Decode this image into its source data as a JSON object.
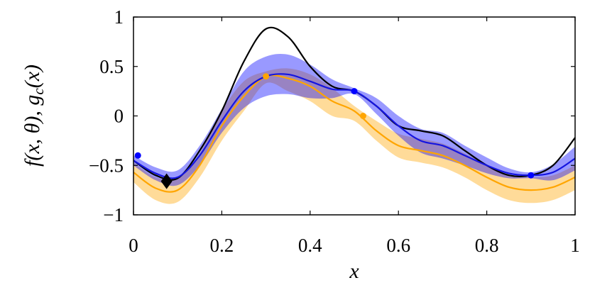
{
  "chart_data": {
    "type": "line",
    "x_label": "x",
    "y_label": [
      "f(x, θ), g",
      "c",
      "(x)"
    ],
    "xlim": [
      0,
      1
    ],
    "ylim": [
      -1,
      1
    ],
    "xticks": [
      0,
      0.2,
      0.4,
      0.6,
      0.8,
      1
    ],
    "yticks": [
      {
        "value": -1,
        "label": "−1"
      },
      {
        "value": -0.5,
        "label": "−0.5"
      },
      0,
      0.5,
      1
    ],
    "x": [
      0,
      0.05,
      0.1,
      0.15,
      0.2,
      0.25,
      0.3,
      0.35,
      0.4,
      0.45,
      0.5,
      0.55,
      0.6,
      0.65,
      0.7,
      0.75,
      0.8,
      0.85,
      0.9,
      0.95,
      1
    ],
    "bands": [
      {
        "color": "#ffa500",
        "lower": [
          -0.67,
          -0.85,
          -0.87,
          -0.62,
          -0.25,
          0.05,
          0.33,
          0.25,
          0.15,
          0.0,
          -0.05,
          -0.25,
          -0.42,
          -0.47,
          -0.52,
          -0.62,
          -0.75,
          -0.85,
          -0.88,
          -0.85,
          -0.75
        ],
        "upper": [
          -0.47,
          -0.62,
          -0.63,
          -0.38,
          0.05,
          0.35,
          0.45,
          0.48,
          0.42,
          0.28,
          0.1,
          -0.05,
          -0.18,
          -0.23,
          -0.28,
          -0.38,
          -0.5,
          -0.6,
          -0.62,
          -0.6,
          -0.5
        ]
      },
      {
        "color": "#0000ff",
        "lower": [
          -0.5,
          -0.65,
          -0.7,
          -0.5,
          -0.17,
          0.08,
          0.2,
          0.22,
          0.18,
          0.18,
          0.22,
          0.02,
          -0.2,
          -0.37,
          -0.43,
          -0.5,
          -0.58,
          -0.63,
          -0.63,
          -0.65,
          -0.55
        ],
        "upper": [
          -0.4,
          -0.52,
          -0.55,
          -0.3,
          0.07,
          0.45,
          0.6,
          0.62,
          0.52,
          0.37,
          0.28,
          0.18,
          0.0,
          -0.13,
          -0.17,
          -0.3,
          -0.42,
          -0.53,
          -0.57,
          -0.49,
          -0.31
        ]
      }
    ],
    "series": [
      {
        "color": "#000000",
        "values": [
          -0.45,
          -0.6,
          -0.63,
          -0.35,
          0.05,
          0.55,
          0.88,
          0.8,
          0.5,
          0.3,
          0.25,
          0.1,
          -0.1,
          -0.15,
          -0.2,
          -0.35,
          -0.5,
          -0.6,
          -0.6,
          -0.5,
          -0.22
        ]
      },
      {
        "color": "#ffa500",
        "values": [
          -0.57,
          -0.73,
          -0.75,
          -0.5,
          -0.1,
          0.2,
          0.4,
          0.38,
          0.3,
          0.15,
          0.05,
          -0.15,
          -0.3,
          -0.35,
          -0.4,
          -0.5,
          -0.62,
          -0.72,
          -0.75,
          -0.72,
          -0.62
        ]
      },
      {
        "color": "#1515e0",
        "values": [
          -0.45,
          -0.58,
          -0.62,
          -0.4,
          -0.05,
          0.25,
          0.4,
          0.42,
          0.35,
          0.27,
          0.25,
          0.1,
          -0.1,
          -0.25,
          -0.3,
          -0.4,
          -0.5,
          -0.58,
          -0.6,
          -0.57,
          -0.43
        ]
      }
    ],
    "points": [
      {
        "color": "#0000ff",
        "x": [
          0.01,
          0.5,
          0.9
        ],
        "y": [
          -0.4,
          0.25,
          -0.6
        ]
      },
      {
        "color": "#ffa500",
        "x": [
          0.3,
          0.52
        ],
        "y": [
          0.4,
          0.0
        ]
      }
    ],
    "marker": {
      "color": "#000000",
      "x": 0.075,
      "y": -0.66
    }
  }
}
